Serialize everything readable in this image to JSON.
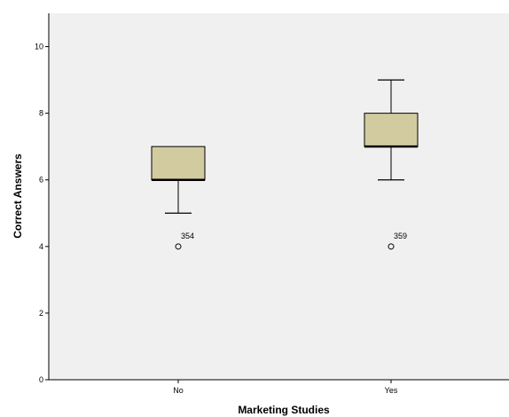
{
  "chart_data": {
    "type": "boxplot",
    "title": "",
    "xlabel": "Marketing Studies",
    "ylabel": "Correct Answers",
    "ylim": [
      0,
      11
    ],
    "yticks": [
      0,
      2,
      4,
      6,
      8,
      10
    ],
    "categories": [
      "No",
      "Yes"
    ],
    "boxes": [
      {
        "category": "No",
        "whisker_low": 5,
        "q1": 6,
        "median": 6,
        "q3": 7,
        "whisker_high": 7,
        "outliers": [
          {
            "value": 4,
            "label": "354"
          }
        ]
      },
      {
        "category": "Yes",
        "whisker_low": 6,
        "q1": 7,
        "median": 7,
        "q3": 8,
        "whisker_high": 9,
        "outliers": [
          {
            "value": 4,
            "label": "359"
          }
        ]
      }
    ],
    "grid": false,
    "colors": {
      "plot_background": "#f0f0f0",
      "box_fill": "#d2cb9f",
      "stroke": "#000000"
    }
  }
}
